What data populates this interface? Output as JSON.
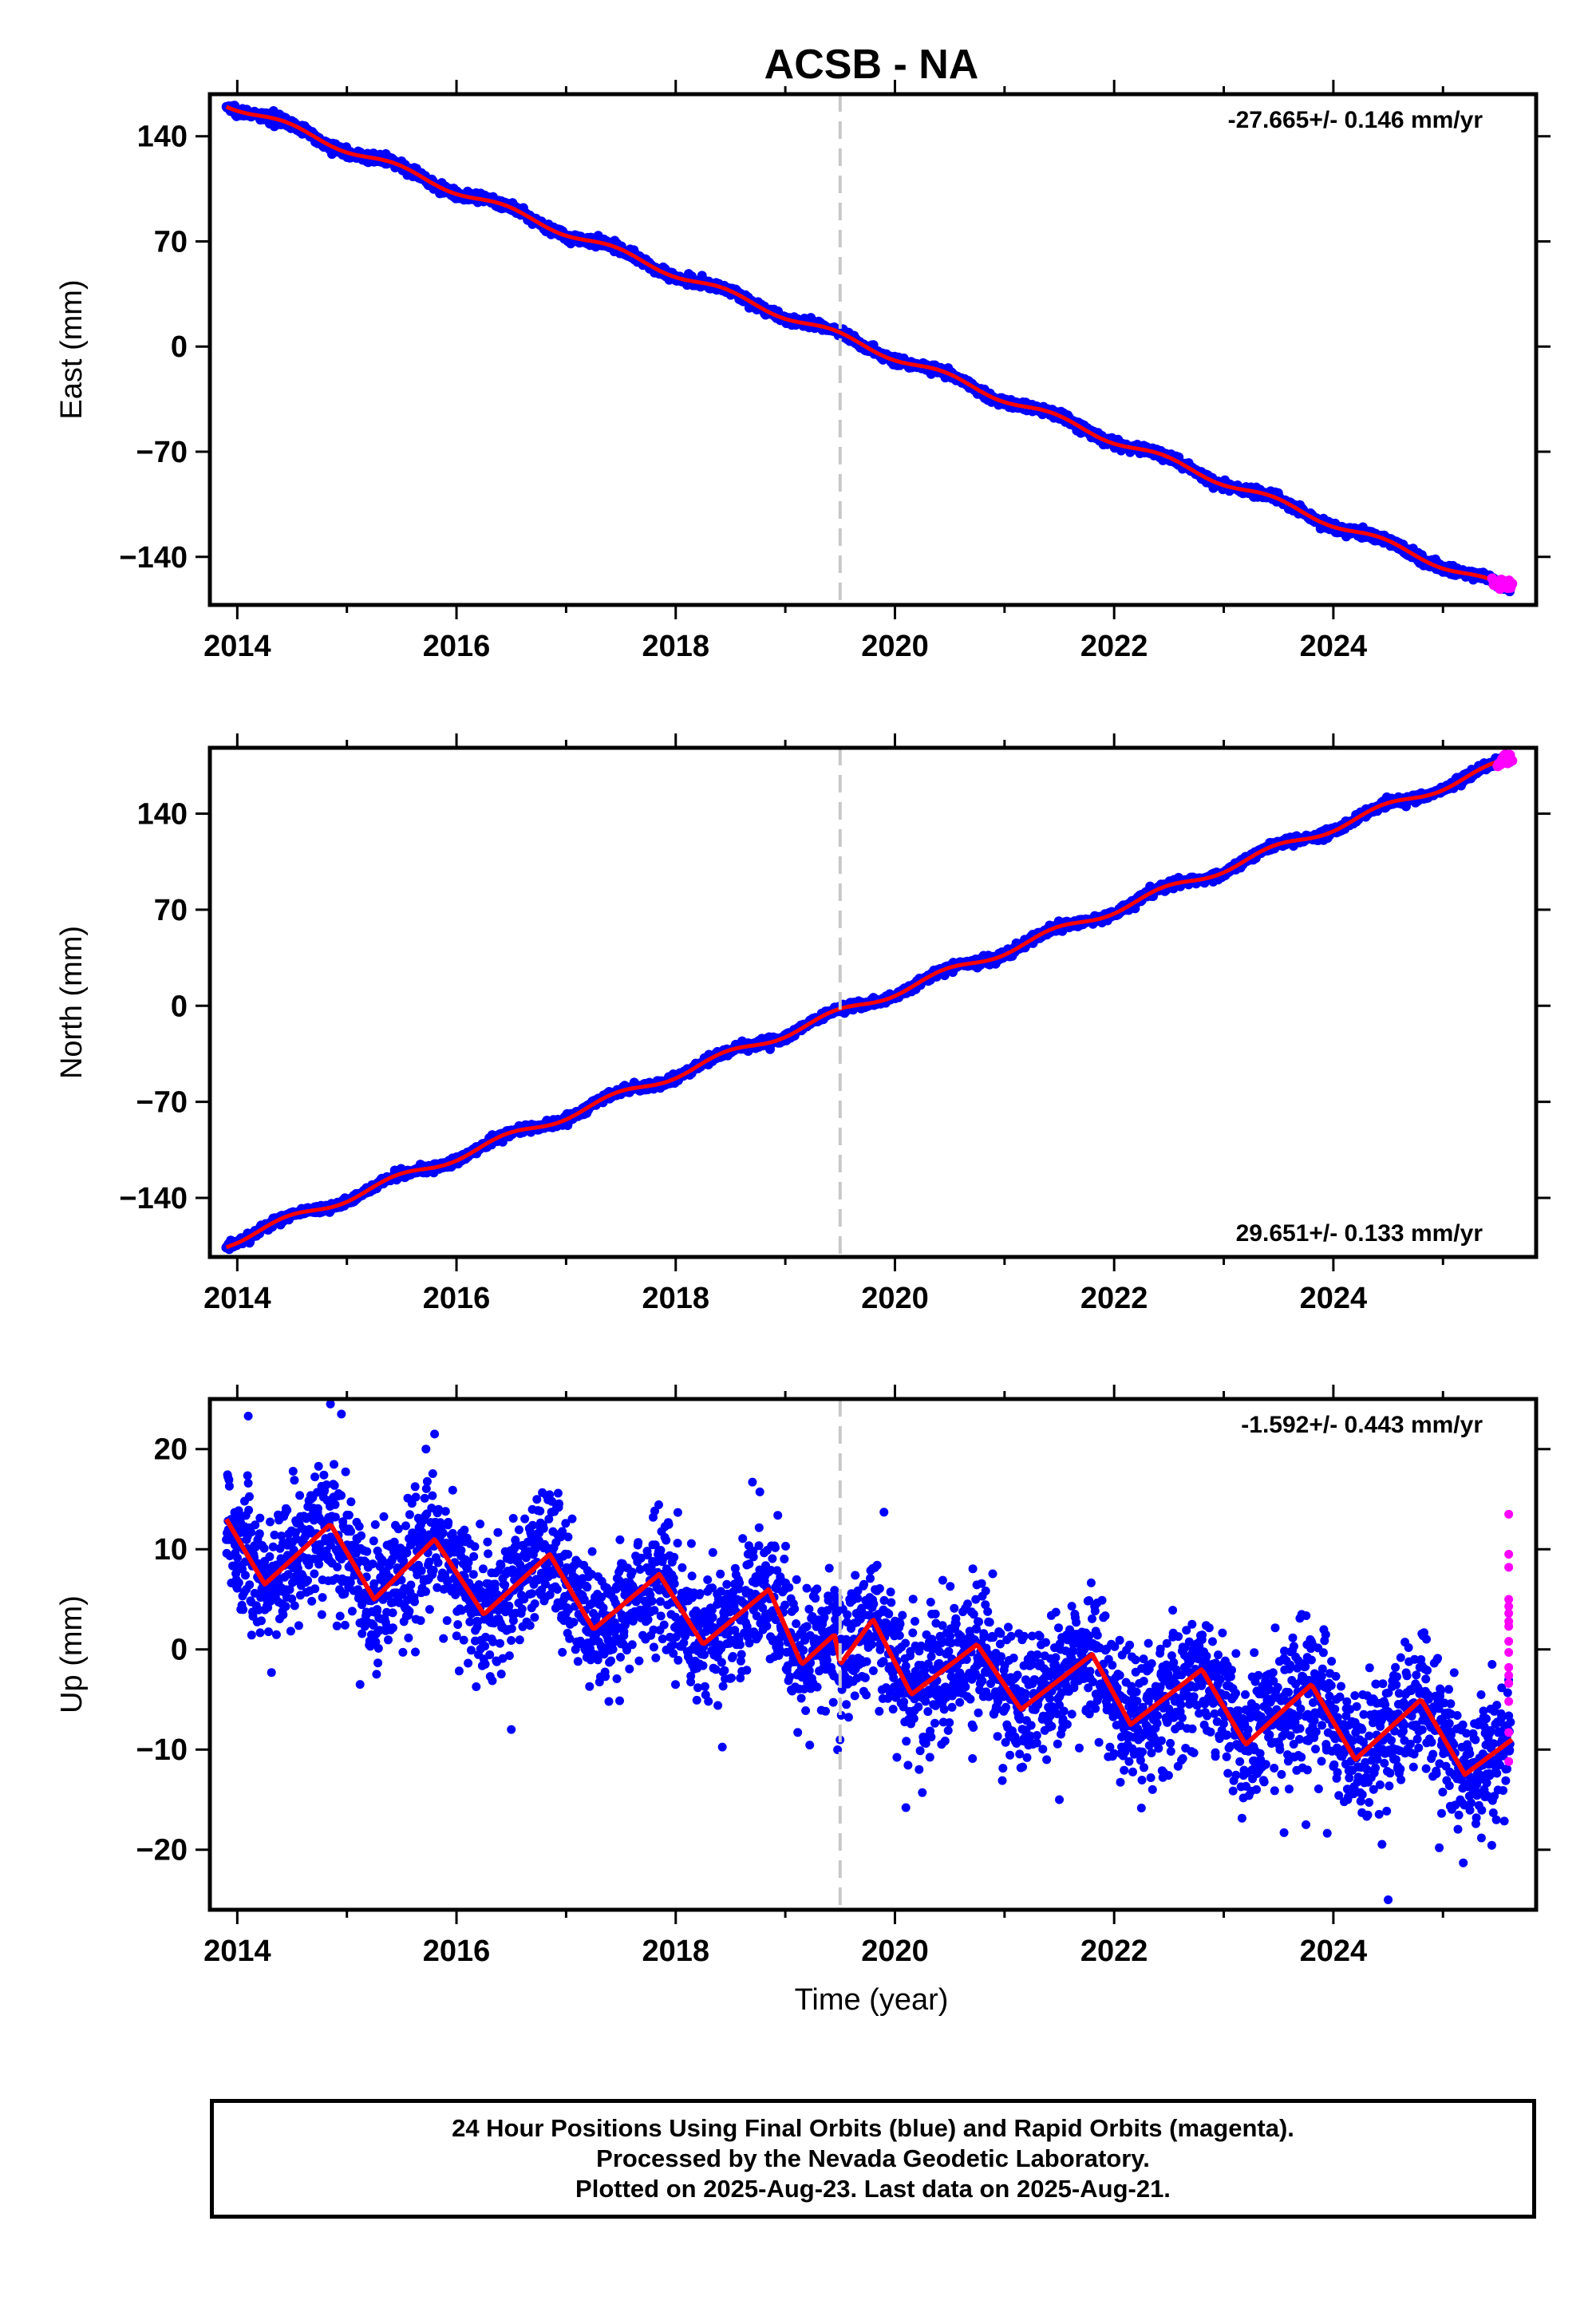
{
  "chart_data": [
    {
      "type": "scatter",
      "title": "ACSB - NA",
      "xlabel": "",
      "ylabel": "East (mm)",
      "xlim": [
        2013.75,
        2025.85
      ],
      "ylim": [
        -172,
        168
      ],
      "xticks": [
        2014,
        2016,
        2018,
        2020,
        2022,
        2024
      ],
      "xtick_labels": [
        "2014",
        "2016",
        "2018",
        "2020",
        "2022",
        "2024"
      ],
      "yticks": [
        140,
        70,
        0,
        -70,
        -140
      ],
      "ytick_labels": [
        "140",
        "70",
        "0",
        "−70",
        "−140"
      ],
      "annotation": "-27.665+/- 0.146 mm/yr",
      "annotation_position": "top-right",
      "vline_x": 2019.5,
      "trend": {
        "x": [
          2013.9,
          2025.6
        ],
        "y": [
          162,
          -162
        ],
        "seasonal_amplitude": 2.5
      },
      "noise": 1.5,
      "series": [
        {
          "values_source": "final orbits",
          "color": "#0000ff"
        },
        {
          "values_source": "rapid orbits",
          "color": "#ff00ff",
          "x_start": 2025.45,
          "x_end": 2025.63
        },
        {
          "values_source": "model",
          "color": "#ff0000"
        }
      ]
    },
    {
      "type": "scatter",
      "title": "",
      "xlabel": "",
      "ylabel": "North (mm)",
      "xlim": [
        2013.75,
        2025.85
      ],
      "ylim": [
        -183,
        188
      ],
      "xticks": [
        2014,
        2016,
        2018,
        2020,
        2022,
        2024
      ],
      "xtick_labels": [
        "2014",
        "2016",
        "2018",
        "2020",
        "2022",
        "2024"
      ],
      "yticks": [
        140,
        70,
        0,
        -70,
        -140
      ],
      "ytick_labels": [
        "140",
        "70",
        "0",
        "−70",
        "−140"
      ],
      "annotation": "29.651+/- 0.133 mm/yr",
      "annotation_position": "bottom-right",
      "vline_x": 2019.5,
      "trend": {
        "x": [
          2013.9,
          2025.6
        ],
        "y": [
          -173,
          178
        ],
        "seasonal_amplitude": 3
      },
      "noise": 1.5,
      "series": [
        {
          "values_source": "final orbits",
          "color": "#0000ff"
        },
        {
          "values_source": "rapid orbits",
          "color": "#ff00ff",
          "x_start": 2025.5,
          "x_end": 2025.63
        },
        {
          "values_source": "model",
          "color": "#ff0000"
        }
      ]
    },
    {
      "type": "scatter",
      "title": "",
      "xlabel": "Time (year)",
      "ylabel": "Up (mm)",
      "xlim": [
        2013.75,
        2025.85
      ],
      "ylim": [
        -26,
        25
      ],
      "xticks": [
        2014,
        2016,
        2018,
        2020,
        2022,
        2024
      ],
      "xtick_labels": [
        "2014",
        "2016",
        "2018",
        "2020",
        "2022",
        "2024"
      ],
      "yticks": [
        20,
        10,
        0,
        -10,
        -20
      ],
      "ytick_labels": [
        "20",
        "10",
        "0",
        "−10",
        "−20"
      ],
      "annotation": "-1.592+/- 0.443 mm/yr",
      "annotation_position": "top-right",
      "vline_x": 2019.5,
      "model_points": {
        "x": [
          2013.9,
          2014.25,
          2014.85,
          2015.25,
          2015.8,
          2016.25,
          2016.85,
          2017.25,
          2017.85,
          2018.25,
          2018.85,
          2019.15,
          2019.45,
          2019.5,
          2019.8,
          2020.15,
          2020.75,
          2021.15,
          2021.8,
          2022.15,
          2022.8,
          2023.2,
          2023.8,
          2024.2,
          2024.8,
          2025.2,
          2025.63
        ],
        "y": [
          13,
          6.5,
          12.5,
          5,
          11,
          3.5,
          9.5,
          2,
          7.5,
          0.5,
          6,
          -1.5,
          1.5,
          -1.5,
          3,
          -4.5,
          0.5,
          -6,
          -0.5,
          -7.5,
          -2,
          -9.5,
          -3.5,
          -11,
          -5,
          -12.5,
          -9
        ]
      },
      "noise": 3.3,
      "outliers": [
        [
          2014.1,
          23.3
        ],
        [
          2014.85,
          24.5
        ],
        [
          2014.95,
          23.5
        ],
        [
          2015.8,
          21.5
        ],
        [
          2018.7,
          16.7
        ],
        [
          2019.9,
          13.7
        ],
        [
          2024.5,
          -25
        ],
        [
          2023.75,
          -17.5
        ],
        [
          2023.55,
          -18.3
        ],
        [
          2020.1,
          -15.8
        ],
        [
          2020.25,
          -14.3
        ],
        [
          2016.5,
          -8
        ],
        [
          2022.35,
          -14
        ],
        [
          2021.5,
          -15
        ],
        [
          2025.3,
          -17.4
        ]
      ],
      "series": [
        {
          "values_source": "final orbits",
          "color": "#0000ff"
        },
        {
          "values_source": "rapid orbits",
          "color": "#ff00ff",
          "x": 2025.6,
          "y": [
            13.5,
            9.5,
            8.2,
            5,
            4.3,
            3.6,
            2.8,
            2.3,
            0.8,
            -0.3,
            -1.8,
            -2.6,
            -3.4,
            -5.2,
            -8.3,
            -11.2
          ]
        },
        {
          "values_source": "model",
          "color": "#ff0000"
        }
      ]
    }
  ],
  "caption": {
    "line1": "24 Hour Positions Using Final Orbits (blue) and Rapid Orbits (magenta).",
    "line2": "Processed by the Nevada Geodetic Laboratory.",
    "line3": "Plotted on 2025-Aug-23. Last data on 2025-Aug-21."
  }
}
